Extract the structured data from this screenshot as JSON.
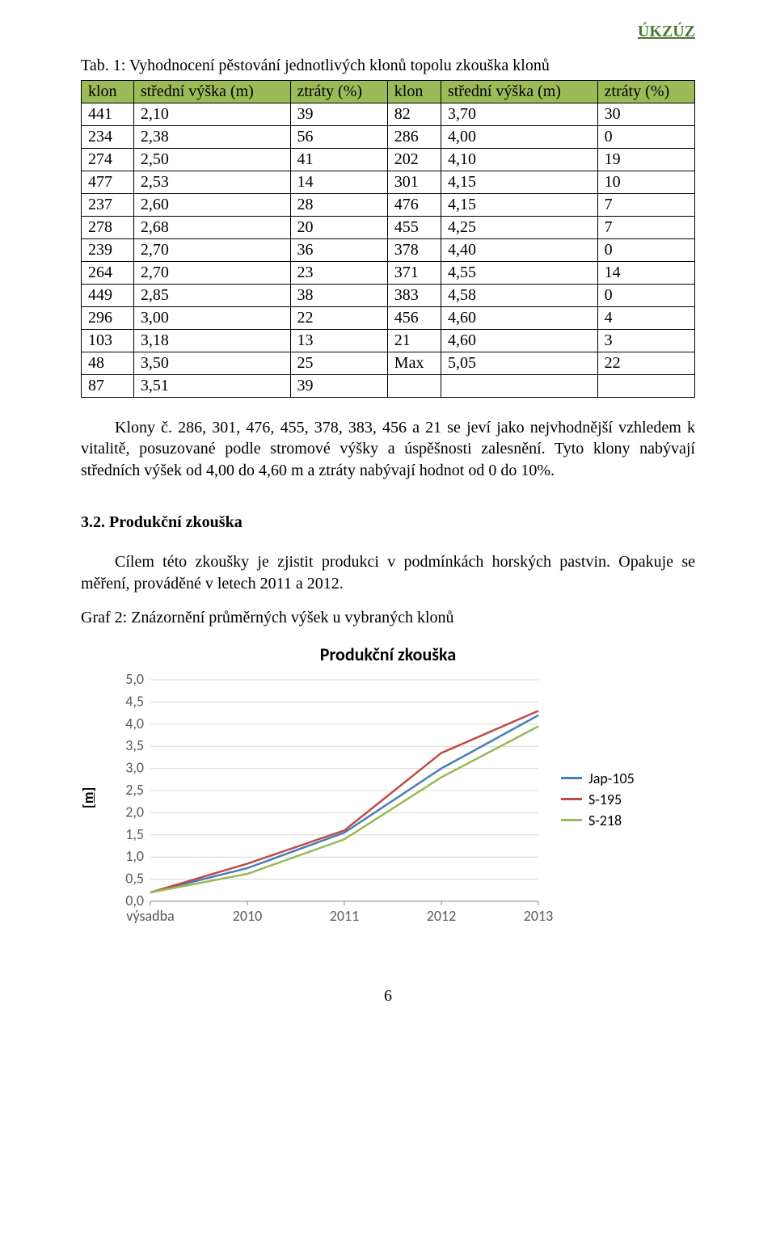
{
  "header": {
    "right": "ÚKZÚZ"
  },
  "table1": {
    "caption": "Tab. 1: Vyhodnocení pěstování jednotlivých klonů topolu zkouška klonů",
    "headers": [
      "klon",
      "střední výška (m)",
      "ztráty (%)",
      "klon",
      "střední výška (m)",
      "ztráty (%)"
    ],
    "header_bg": "#9bbb59",
    "rows": [
      [
        "441",
        "2,10",
        "39",
        "82",
        "3,70",
        "30"
      ],
      [
        "234",
        "2,38",
        "56",
        "286",
        "4,00",
        "0"
      ],
      [
        "274",
        "2,50",
        "41",
        "202",
        "4,10",
        "19"
      ],
      [
        "477",
        "2,53",
        "14",
        "301",
        "4,15",
        "10"
      ],
      [
        "237",
        "2,60",
        "28",
        "476",
        "4,15",
        "7"
      ],
      [
        "278",
        "2,68",
        "20",
        "455",
        "4,25",
        "7"
      ],
      [
        "239",
        "2,70",
        "36",
        "378",
        "4,40",
        "0"
      ],
      [
        "264",
        "2,70",
        "23",
        "371",
        "4,55",
        "14"
      ],
      [
        "449",
        "2,85",
        "38",
        "383",
        "4,58",
        "0"
      ],
      [
        "296",
        "3,00",
        "22",
        "456",
        "4,60",
        "4"
      ],
      [
        "103",
        "3,18",
        "13",
        "21",
        "4,60",
        "3"
      ],
      [
        "48",
        "3,50",
        "25",
        "Max",
        "5,05",
        "22"
      ],
      [
        "87",
        "3,51",
        "39",
        "",
        "",
        ""
      ]
    ]
  },
  "para1": "Klony č. 286, 301, 476, 455, 378, 383, 456 a 21 se jeví jako nejvhodnější vzhledem k vitalitě, posuzované podle stromové výšky a úspěšnosti zalesnění. Tyto klony nabývají středních výšek od 4,00 do 4,60 m a ztráty nabývají hodnot od 0 do 10%.",
  "section32": {
    "heading": "3.2. Produkční zkouška"
  },
  "para2": "Cílem této zkoušky je zjistit produkci v podmínkách horských pastvin. Opakuje se měření, prováděné v letech 2011 a 2012.",
  "graph_caption": "Graf 2: Znázornění průměrných výšek u vybraných klonů",
  "chart": {
    "type": "line",
    "title": "Produkční zkouška",
    "title_fontsize": 22,
    "ylabel": "[m]",
    "x_categories": [
      "výsadba",
      "2010",
      "2011",
      "2012",
      "2013"
    ],
    "y_ticks": [
      "0,0",
      "0,5",
      "1,0",
      "1,5",
      "2,0",
      "2,5",
      "3,0",
      "3,5",
      "4,0",
      "4,5",
      "5,0"
    ],
    "ylim": [
      0,
      5
    ],
    "ytick_step": 0.5,
    "grid_color": "#d9d9d9",
    "axis_color": "#898989",
    "background_color": "#ffffff",
    "line_width": 2.5,
    "series": [
      {
        "name": "Jap-105",
        "color": "#4a7ebb",
        "values": [
          0.2,
          0.75,
          1.55,
          3.0,
          4.2
        ]
      },
      {
        "name": "S-195",
        "color": "#be4b48",
        "values": [
          0.2,
          0.85,
          1.6,
          3.35,
          4.3
        ]
      },
      {
        "name": "S-218",
        "color": "#98b954",
        "values": [
          0.2,
          0.62,
          1.4,
          2.8,
          3.95
        ]
      }
    ]
  },
  "page_number": "6"
}
